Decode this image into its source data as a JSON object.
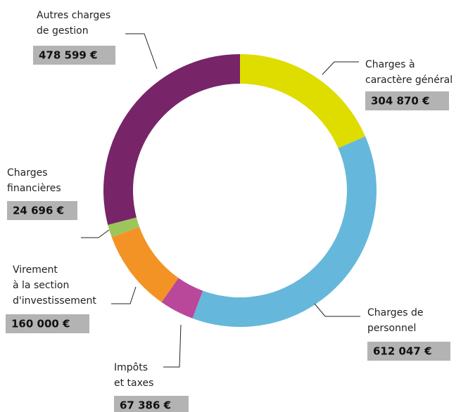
{
  "chart_data": {
    "type": "donut",
    "categories": [
      [
        "Charges à",
        "caractère général"
      ],
      [
        "Charges de",
        "personnel"
      ],
      [
        "Impôts",
        "et taxes"
      ],
      [
        "Virement",
        "à la section",
        "d'investissement"
      ],
      [
        "Charges",
        "financières"
      ],
      [
        "Autres charges",
        "de gestion"
      ]
    ],
    "values": [
      304870,
      612047,
      67386,
      160000,
      24696,
      478599
    ],
    "value_labels": [
      "304 870 €",
      "612 047 €",
      "67 386 €",
      "160 000 €",
      "24 696 €",
      "478 599 €"
    ],
    "colors": [
      "#dfdc00",
      "#65b8db",
      "#b9489a",
      "#f39325",
      "#9dc65a",
      "#772469"
    ]
  }
}
